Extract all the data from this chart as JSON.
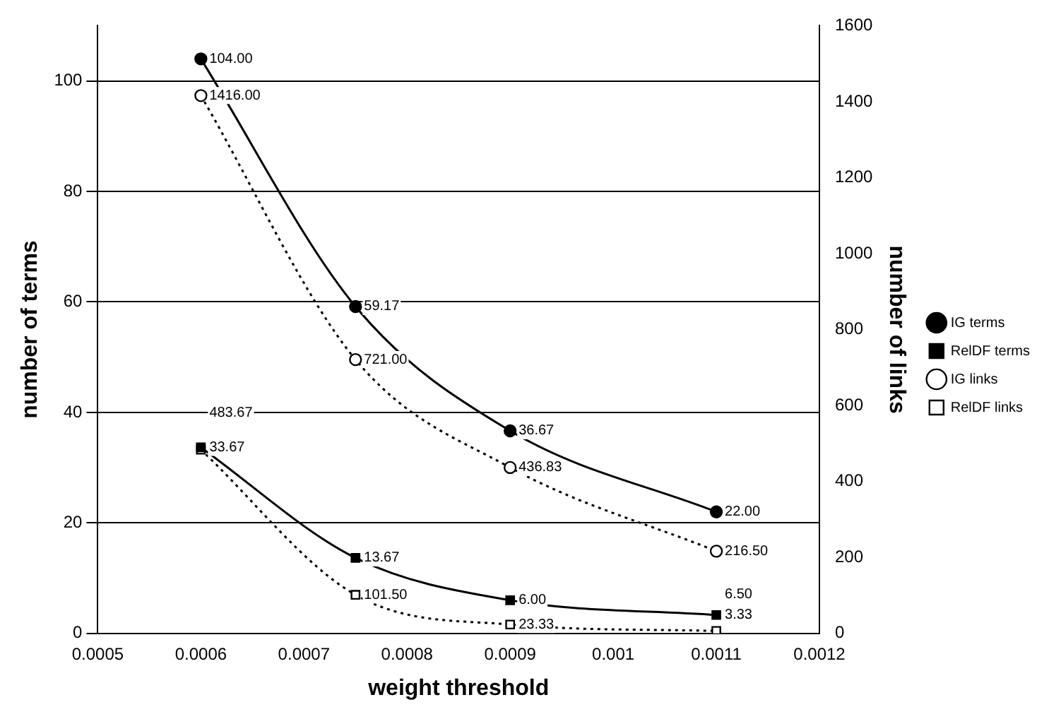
{
  "chart_data": {
    "type": "line",
    "xlabel": "weight threshold",
    "ylabel": "number of terms",
    "y2label": "number of links",
    "x": [
      0.0006,
      0.00075,
      0.0009,
      0.0011
    ],
    "series": [
      {
        "name": "IG terms",
        "color": "#000000",
        "marker": "circle",
        "line_style": "solid",
        "values": [
          104,
          59.17,
          36.67,
          22
        ],
        "value_labels": [
          "104.00",
          "59.17",
          "36.67",
          "22.00"
        ]
      },
      {
        "name": "RelDF terms",
        "color": "#000000",
        "marker": "square",
        "line_style": "solid",
        "values": [
          33.67,
          13.67,
          6,
          3.33
        ],
        "value_labels": [
          "33.67",
          "13.67",
          "6.00",
          "3.33"
        ]
      },
      {
        "name": "IG links",
        "color": "#000000",
        "marker": "circle",
        "line_style": "dotted",
        "axis": "y2",
        "values": [
          1416,
          721,
          436.83,
          216.5
        ],
        "value_labels": [
          "1416.00",
          "721.00",
          "436.83",
          "216.50"
        ]
      },
      {
        "name": "RelDF links",
        "color": "#000000",
        "marker": "square",
        "line_style": "dotted",
        "axis": "y2",
        "values": [
          483.67,
          101.5,
          23.33,
          6.5
        ],
        "value_labels": [
          "483.67",
          "101.50",
          "23.33",
          "6.50"
        ]
      }
    ],
    "xlim": [
      0.0005,
      0.0012
    ],
    "xticks": [
      0.0005,
      0.0006,
      0.0007,
      0.0008,
      0.0009,
      0.001,
      0.0011,
      0.0012
    ],
    "ylim": [
      0,
      110
    ],
    "yticks": [
      0,
      20,
      40,
      60,
      80,
      100
    ],
    "y2lim": [
      0,
      1600
    ],
    "y2ticks": [
      0,
      200,
      400,
      600,
      800,
      1000,
      1200,
      1400,
      1600
    ],
    "grid": "y",
    "legend": "right"
  }
}
